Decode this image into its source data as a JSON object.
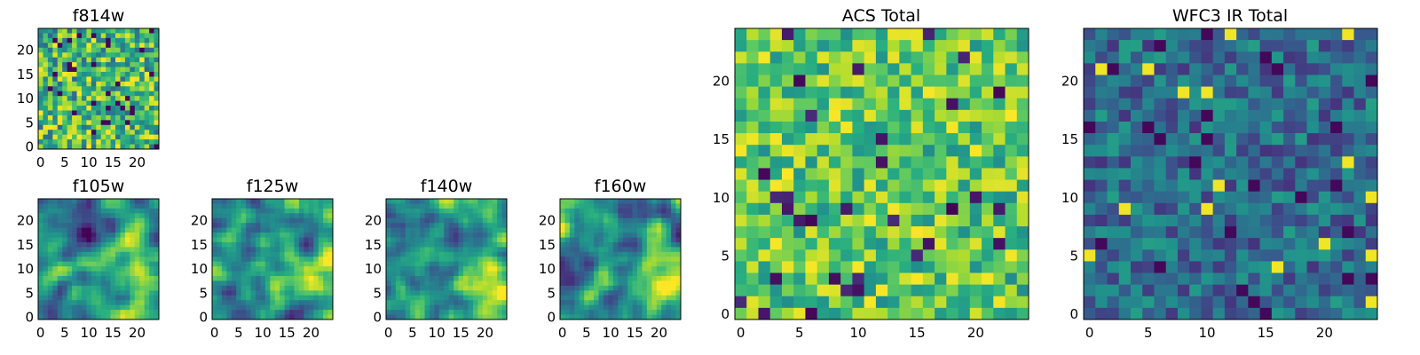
{
  "figure": {
    "panels": [
      {
        "id": "f814w",
        "title": "f814w",
        "xticks": [
          "0",
          "5",
          "10",
          "15",
          "20"
        ],
        "yticks": [
          "0",
          "5",
          "10",
          "15",
          "20"
        ]
      },
      {
        "id": "f105w",
        "title": "f105w",
        "xticks": [
          "0",
          "5",
          "10",
          "15",
          "20"
        ],
        "yticks": [
          "0",
          "5",
          "10",
          "15",
          "20"
        ]
      },
      {
        "id": "f125w",
        "title": "f125w",
        "xticks": [
          "0",
          "5",
          "10",
          "15",
          "20"
        ],
        "yticks": [
          "0",
          "5",
          "10",
          "15",
          "20"
        ]
      },
      {
        "id": "f140w",
        "title": "f140w",
        "xticks": [
          "0",
          "5",
          "10",
          "15",
          "20"
        ],
        "yticks": [
          "0",
          "5",
          "10",
          "15",
          "20"
        ]
      },
      {
        "id": "f160w",
        "title": "f160w",
        "xticks": [
          "0",
          "5",
          "10",
          "15",
          "20"
        ],
        "yticks": [
          "0",
          "5",
          "10",
          "15",
          "20"
        ]
      },
      {
        "id": "acs",
        "title": "ACS Total",
        "xticks": [
          "0",
          "5",
          "10",
          "15",
          "20"
        ],
        "yticks": [
          "0",
          "5",
          "10",
          "15",
          "20"
        ]
      },
      {
        "id": "wfc3",
        "title": "WFC3 IR Total",
        "xticks": [
          "0",
          "5",
          "10",
          "15",
          "20"
        ],
        "yticks": [
          "0",
          "5",
          "10",
          "15",
          "20"
        ]
      }
    ]
  },
  "chart_data": [
    {
      "type": "heatmap",
      "title": "f814w",
      "grid_size": [
        25,
        25
      ],
      "xlim": [
        -0.5,
        24.5
      ],
      "ylim": [
        -0.5,
        24.5
      ],
      "colormap": "viridis",
      "pattern": "noise",
      "seed": 11
    },
    {
      "type": "heatmap",
      "title": "f105w",
      "grid_size": [
        25,
        25
      ],
      "xlim": [
        -0.5,
        24.5
      ],
      "ylim": [
        -0.5,
        24.5
      ],
      "colormap": "viridis",
      "pattern": "smooth",
      "seed": 21
    },
    {
      "type": "heatmap",
      "title": "f125w",
      "grid_size": [
        25,
        25
      ],
      "xlim": [
        -0.5,
        24.5
      ],
      "ylim": [
        -0.5,
        24.5
      ],
      "colormap": "viridis",
      "pattern": "smooth",
      "seed": 31
    },
    {
      "type": "heatmap",
      "title": "f140w",
      "grid_size": [
        25,
        25
      ],
      "xlim": [
        -0.5,
        24.5
      ],
      "ylim": [
        -0.5,
        24.5
      ],
      "colormap": "viridis",
      "pattern": "smooth",
      "seed": 41
    },
    {
      "type": "heatmap",
      "title": "f160w",
      "grid_size": [
        25,
        25
      ],
      "xlim": [
        -0.5,
        24.5
      ],
      "ylim": [
        -0.5,
        24.5
      ],
      "colormap": "viridis",
      "pattern": "smooth",
      "seed": 51
    },
    {
      "type": "heatmap",
      "title": "ACS Total",
      "grid_size": [
        25,
        25
      ],
      "xlim": [
        -0.5,
        24.5
      ],
      "ylim": [
        -0.5,
        24.5
      ],
      "colormap": "viridis",
      "pattern": "bright-noise",
      "seed": 61
    },
    {
      "type": "heatmap",
      "title": "WFC3 IR Total",
      "grid_size": [
        25,
        25
      ],
      "xlim": [
        -0.5,
        24.5
      ],
      "ylim": [
        -0.5,
        24.5
      ],
      "colormap": "viridis",
      "pattern": "mid-noise",
      "seed": 71
    }
  ],
  "colors": {
    "viridis": [
      "#440154",
      "#472d7b",
      "#3b528b",
      "#2c728e",
      "#21918c",
      "#28ae80",
      "#5ec962",
      "#addc30",
      "#fde725"
    ],
    "axis": "#000000"
  }
}
